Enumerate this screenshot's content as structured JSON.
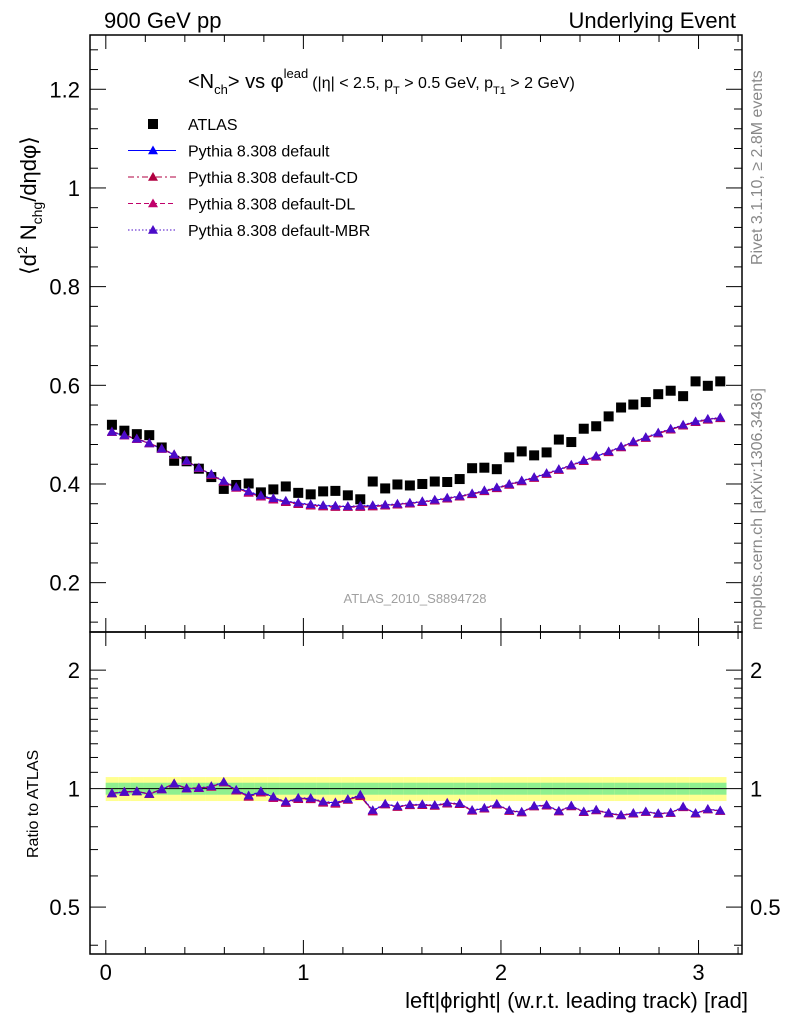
{
  "header": {
    "left": "900 GeV pp",
    "right": "Underlying Event"
  },
  "side_labels": {
    "rivet": "Rivet 3.1.10, ≥ 2.8M events",
    "mcplots": "mcplots.cern.ch [arXiv:1306.3436]"
  },
  "chart_data": {
    "type": "scatter",
    "title_main": "<N",
    "title_sub": "ch",
    "title_mid": "> vs φ",
    "title_sup": "lead",
    "title_cut_a": "(|η| < 2.5, p",
    "title_cut_a_sub": "T",
    "title_cut_b": " > 0.5 GeV, p",
    "title_cut_b_sub": "T1",
    "title_cut_c": " > 2 GeV)",
    "watermark": "ATLAS_2010_S8894728",
    "ylabel": "⟨d² N_chg/dηdφ⟩",
    "ylabel_parts": {
      "a": "⟨d",
      "b": "2",
      "c": " N",
      "d": "chg",
      "e": "/dηdφ⟩"
    },
    "xlabel": "left|phiright| (w.r.t. leading track) [rad]",
    "xlabel_parts": {
      "a": "left|",
      "b": "ϕ",
      "c": "right| (w.r.t. leading track) [rad]"
    },
    "xlim": [
      -0.08,
      3.22
    ],
    "ylim": [
      0.1,
      1.31
    ],
    "yticks": [
      0.2,
      0.4,
      0.6,
      0.8,
      1,
      1.2
    ],
    "ytick_labels": [
      "0.2",
      "0.4",
      "0.6",
      "0.8",
      "1",
      "1.2"
    ],
    "xticks": [
      0,
      1,
      2,
      3
    ],
    "xtick_labels": [
      "0",
      "1",
      "2",
      "3"
    ],
    "legend_position": "top-left",
    "x": [
      0.031,
      0.094,
      0.157,
      0.22,
      0.283,
      0.346,
      0.409,
      0.471,
      0.534,
      0.597,
      0.66,
      0.723,
      0.785,
      0.848,
      0.911,
      0.974,
      1.037,
      1.1,
      1.162,
      1.225,
      1.288,
      1.351,
      1.414,
      1.476,
      1.539,
      1.602,
      1.665,
      1.728,
      1.791,
      1.854,
      1.916,
      1.979,
      2.042,
      2.105,
      2.168,
      2.231,
      2.293,
      2.356,
      2.419,
      2.482,
      2.545,
      2.608,
      2.67,
      2.733,
      2.796,
      2.859,
      2.922,
      2.985,
      3.047,
      3.11
    ],
    "series": [
      {
        "name": "ATLAS",
        "color": "#000000",
        "marker": "square",
        "values": [
          0.52,
          0.508,
          0.501,
          0.499,
          0.474,
          0.447,
          0.446,
          0.431,
          0.414,
          0.39,
          0.398,
          0.401,
          0.383,
          0.389,
          0.395,
          0.382,
          0.379,
          0.385,
          0.386,
          0.377,
          0.369,
          0.405,
          0.391,
          0.399,
          0.397,
          0.4,
          0.405,
          0.404,
          0.41,
          0.432,
          0.433,
          0.43,
          0.454,
          0.466,
          0.458,
          0.464,
          0.49,
          0.485,
          0.512,
          0.517,
          0.537,
          0.555,
          0.561,
          0.566,
          0.582,
          0.589,
          0.578,
          0.608,
          0.599,
          0.608
        ]
      },
      {
        "name": "Pythia 8.308 default",
        "color": "#0000ff",
        "marker": "triangle",
        "line": "solid",
        "values": [
          0.505,
          0.498,
          0.491,
          0.482,
          0.471,
          0.459,
          0.446,
          0.432,
          0.419,
          0.405,
          0.393,
          0.384,
          0.376,
          0.37,
          0.365,
          0.361,
          0.358,
          0.356,
          0.355,
          0.354,
          0.355,
          0.356,
          0.357,
          0.359,
          0.361,
          0.364,
          0.367,
          0.371,
          0.375,
          0.38,
          0.386,
          0.392,
          0.399,
          0.406,
          0.413,
          0.421,
          0.429,
          0.438,
          0.447,
          0.456,
          0.465,
          0.475,
          0.485,
          0.494,
          0.503,
          0.511,
          0.519,
          0.526,
          0.531,
          0.534
        ]
      },
      {
        "name": "Pythia 8.308 default-CD",
        "color": "#b00040",
        "marker": "triangle",
        "line": "dashdot",
        "values": [
          0.506,
          0.499,
          0.492,
          0.483,
          0.472,
          0.46,
          0.447,
          0.433,
          0.419,
          0.405,
          0.392,
          0.382,
          0.374,
          0.368,
          0.363,
          0.359,
          0.356,
          0.354,
          0.353,
          0.353,
          0.353,
          0.354,
          0.356,
          0.358,
          0.36,
          0.363,
          0.366,
          0.37,
          0.374,
          0.379,
          0.385,
          0.391,
          0.398,
          0.405,
          0.412,
          0.42,
          0.428,
          0.437,
          0.446,
          0.455,
          0.464,
          0.474,
          0.484,
          0.493,
          0.502,
          0.51,
          0.518,
          0.525,
          0.53,
          0.533
        ]
      },
      {
        "name": "Pythia 8.308 default-DL",
        "color": "#c0006a",
        "marker": "triangle",
        "line": "dashed",
        "values": [
          0.505,
          0.498,
          0.491,
          0.482,
          0.471,
          0.459,
          0.446,
          0.432,
          0.418,
          0.404,
          0.392,
          0.382,
          0.374,
          0.368,
          0.364,
          0.36,
          0.357,
          0.355,
          0.354,
          0.354,
          0.354,
          0.355,
          0.357,
          0.359,
          0.361,
          0.364,
          0.367,
          0.371,
          0.375,
          0.38,
          0.386,
          0.392,
          0.399,
          0.406,
          0.413,
          0.421,
          0.429,
          0.438,
          0.447,
          0.456,
          0.465,
          0.475,
          0.485,
          0.494,
          0.503,
          0.511,
          0.519,
          0.526,
          0.531,
          0.534
        ]
      },
      {
        "name": "Pythia 8.308 default-MBR",
        "color": "#4b0bc8",
        "marker": "triangle",
        "line": "dotted",
        "values": [
          0.506,
          0.499,
          0.492,
          0.483,
          0.472,
          0.46,
          0.447,
          0.433,
          0.42,
          0.406,
          0.394,
          0.385,
          0.377,
          0.371,
          0.366,
          0.362,
          0.359,
          0.357,
          0.356,
          0.355,
          0.356,
          0.357,
          0.358,
          0.36,
          0.362,
          0.365,
          0.368,
          0.372,
          0.376,
          0.381,
          0.387,
          0.393,
          0.4,
          0.407,
          0.414,
          0.422,
          0.43,
          0.439,
          0.448,
          0.457,
          0.466,
          0.476,
          0.486,
          0.495,
          0.504,
          0.512,
          0.52,
          0.527,
          0.532,
          0.535
        ]
      }
    ],
    "ratio": {
      "ylabel": "Ratio to ATLAS",
      "ylim": [
        0.38,
        2.5
      ],
      "log": true,
      "yticks": [
        0.5,
        1,
        2
      ],
      "ytick_labels": [
        "0.5",
        "1",
        "2"
      ],
      "band_inner_color": "#8ff08f",
      "band_outer_color": "#ffff90",
      "band_inner": [
        0.035,
        0.035,
        0.035,
        0.035,
        0.035,
        0.035,
        0.035,
        0.035,
        0.035,
        0.035,
        0.035,
        0.035,
        0.035,
        0.035,
        0.035,
        0.035,
        0.035,
        0.035,
        0.035,
        0.035,
        0.035,
        0.035,
        0.035,
        0.035,
        0.035,
        0.035,
        0.035,
        0.035,
        0.035,
        0.035,
        0.035,
        0.035,
        0.035,
        0.035,
        0.035,
        0.035,
        0.035,
        0.035,
        0.035,
        0.035,
        0.035,
        0.035,
        0.035,
        0.035,
        0.035,
        0.035,
        0.035,
        0.035,
        0.035,
        0.035
      ],
      "band_outer": [
        0.07,
        0.07,
        0.07,
        0.07,
        0.07,
        0.07,
        0.07,
        0.07,
        0.07,
        0.07,
        0.07,
        0.07,
        0.07,
        0.07,
        0.07,
        0.07,
        0.07,
        0.07,
        0.07,
        0.07,
        0.07,
        0.07,
        0.07,
        0.07,
        0.07,
        0.07,
        0.07,
        0.07,
        0.07,
        0.07,
        0.07,
        0.07,
        0.07,
        0.07,
        0.07,
        0.07,
        0.07,
        0.07,
        0.07,
        0.07,
        0.07,
        0.07,
        0.07,
        0.07,
        0.07,
        0.07,
        0.07,
        0.07,
        0.07,
        0.07
      ],
      "series_values": [
        0.972,
        0.98,
        0.983,
        0.968,
        0.995,
        1.028,
        1.0,
        1.002,
        1.012,
        1.038,
        0.99,
        0.958,
        0.982,
        0.951,
        0.924,
        0.945,
        0.944,
        0.925,
        0.92,
        0.938,
        0.962,
        0.879,
        0.913,
        0.9,
        0.909,
        0.91,
        0.906,
        0.918,
        0.915,
        0.88,
        0.891,
        0.912,
        0.879,
        0.871,
        0.902,
        0.907,
        0.876,
        0.903,
        0.873,
        0.882,
        0.866,
        0.856,
        0.865,
        0.873,
        0.864,
        0.868,
        0.898,
        0.865,
        0.886,
        0.878
      ]
    }
  }
}
